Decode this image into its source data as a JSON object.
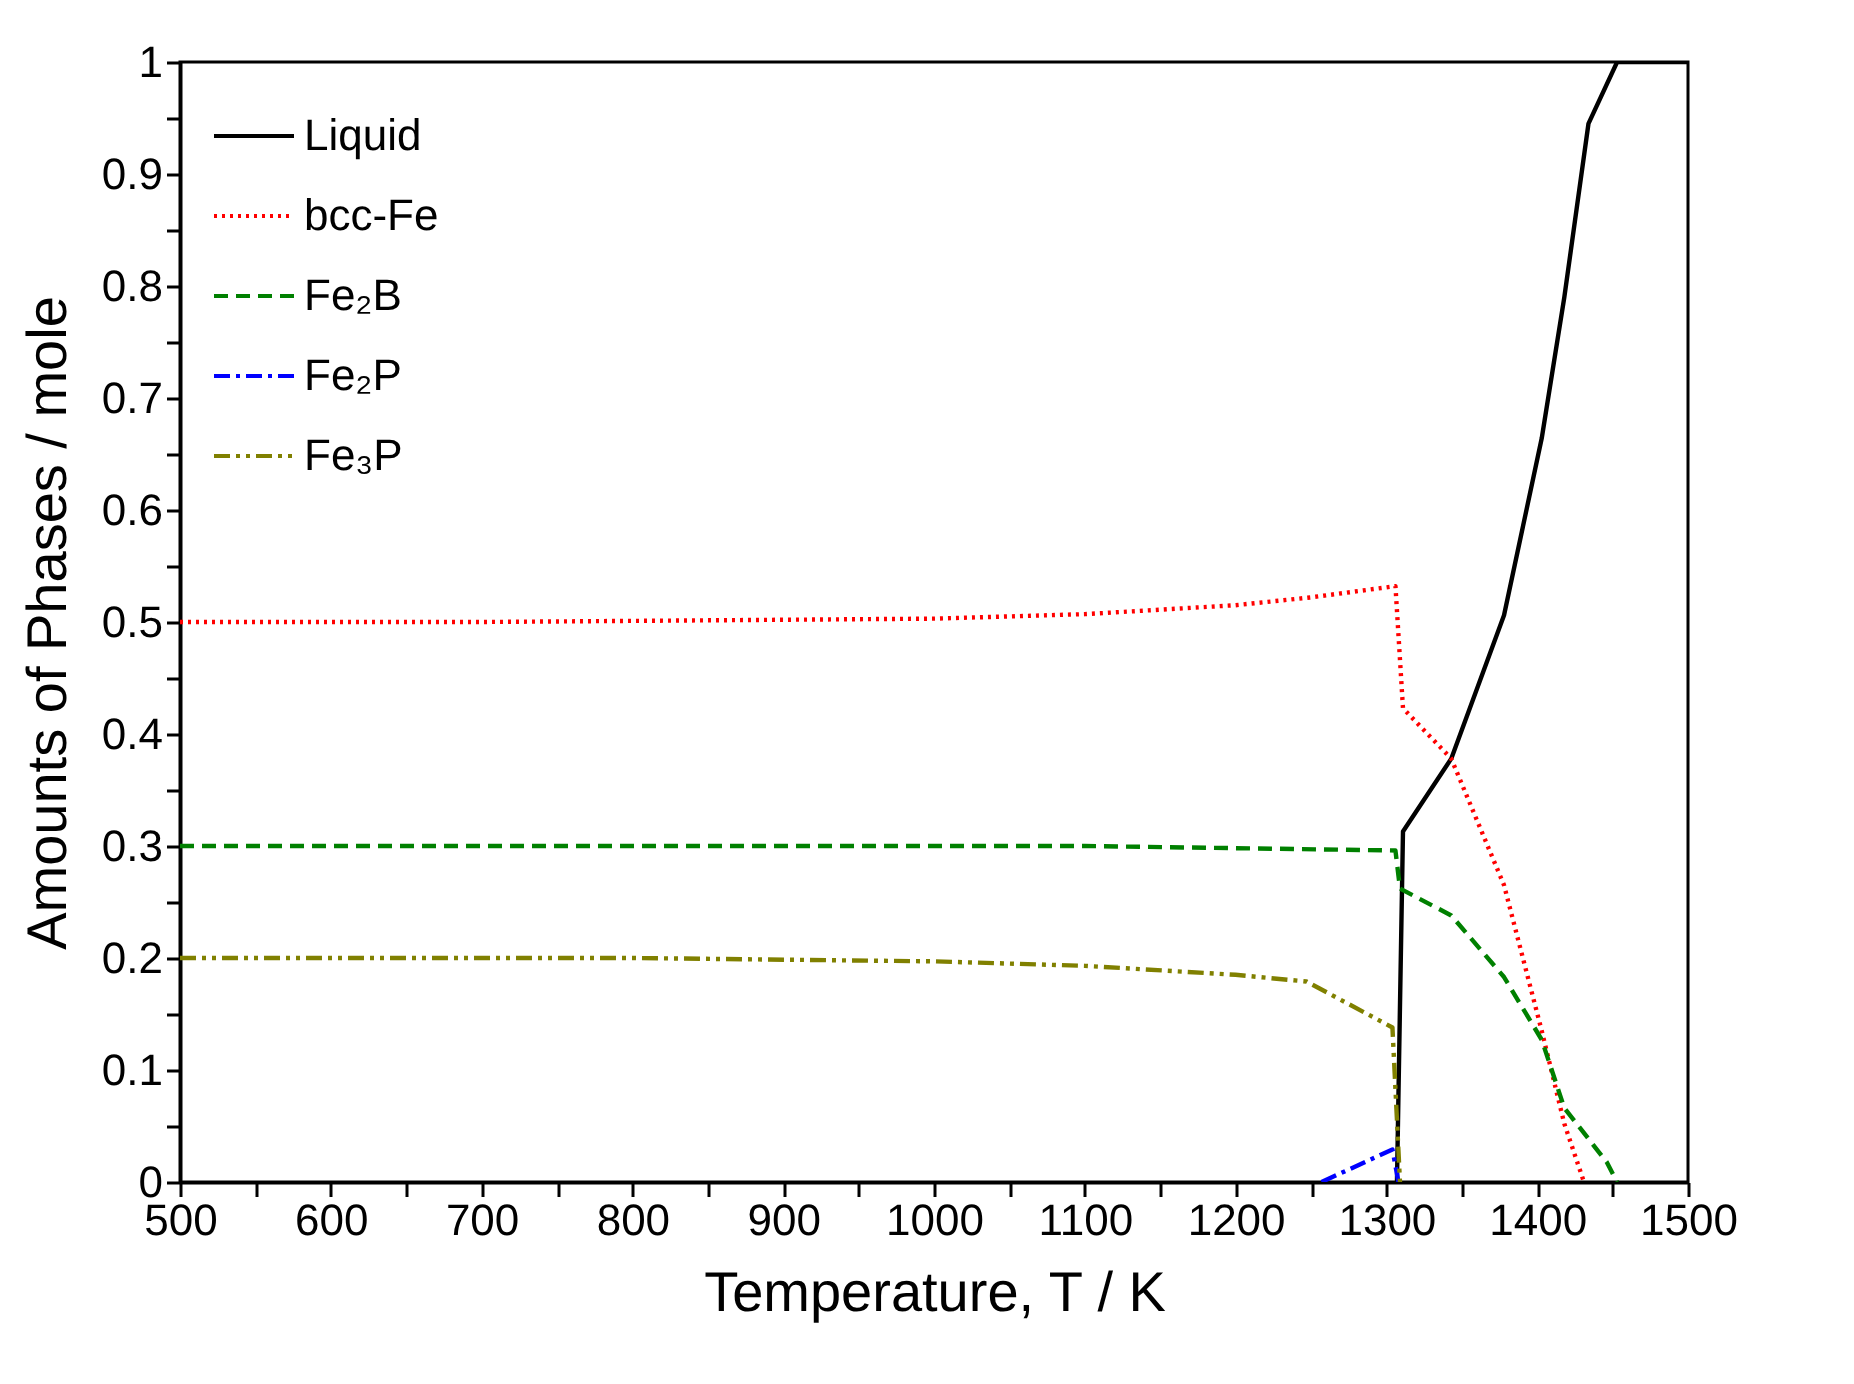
{
  "chart_data": {
    "type": "line",
    "xlabel": "Temperature, T / K",
    "ylabel": "Amounts of Phases / mole",
    "xlim": [
      500,
      1500
    ],
    "ylim": [
      0,
      1
    ],
    "xticks": [
      500,
      {
        "value": 550,
        "label": null
      },
      600,
      {
        "value": 650,
        "label": null
      },
      700,
      {
        "value": 750,
        "label": null
      },
      800,
      {
        "value": 850,
        "label": null
      },
      900,
      {
        "value": 950,
        "label": null
      },
      1000,
      {
        "value": 1050,
        "label": null
      },
      1100,
      {
        "value": 1150,
        "label": null
      },
      1200,
      {
        "value": 1250,
        "label": null
      },
      1300,
      {
        "value": 1350,
        "label": null
      },
      1400,
      {
        "value": 1450,
        "label": null
      },
      1500
    ],
    "yticks": [
      0,
      {
        "value": 0.05,
        "label": null
      },
      0.1,
      {
        "value": 0.15,
        "label": null
      },
      0.2,
      {
        "value": 0.25,
        "label": null
      },
      0.3,
      {
        "value": 0.35,
        "label": null
      },
      0.4,
      {
        "value": 0.45,
        "label": null
      },
      0.5,
      {
        "value": 0.55,
        "label": null
      },
      0.6,
      {
        "value": 0.65,
        "label": null
      },
      0.7,
      {
        "value": 0.75,
        "label": null
      },
      0.8,
      {
        "value": 0.85,
        "label": null
      },
      0.9,
      {
        "value": 0.95,
        "label": null
      },
      1
    ],
    "grid": false,
    "legend": "top left",
    "marker": "none",
    "series": [
      {
        "name": "Liquid",
        "color": "#000000",
        "line_style": "solid",
        "x": [
          1307,
          1311,
          1343,
          1378,
          1403,
          1418,
          1434,
          1453,
          1500
        ],
        "values": [
          0,
          0.313,
          0.378,
          0.506,
          0.664,
          0.79,
          0.945,
          1.0,
          1.0
        ]
      },
      {
        "name": "bcc-Fe",
        "color": "#ff0000",
        "line_style": "dotted",
        "x": [
          500,
          700,
          900,
          1000,
          1100,
          1200,
          1250,
          1306,
          1311,
          1343,
          1378,
          1403,
          1418,
          1431
        ],
        "values": [
          0.5,
          0.5,
          0.502,
          0.503,
          0.507,
          0.515,
          0.522,
          0.532,
          0.423,
          0.378,
          0.265,
          0.135,
          0.052,
          0
        ]
      },
      {
        "name": "Fe₂B",
        "color": "#008000",
        "line_style": "dashed",
        "x": [
          500,
          800,
          1100,
          1306,
          1309,
          1343,
          1378,
          1403,
          1418,
          1446,
          1453
        ],
        "values": [
          0.3,
          0.3,
          0.3,
          0.296,
          0.262,
          0.238,
          0.183,
          0.127,
          0.066,
          0.018,
          0
        ]
      },
      {
        "name": "Fe₂P",
        "color": "#0000ff",
        "line_style": "dashdot",
        "x": [
          1257,
          1304,
          1308
        ],
        "values": [
          0,
          0.029,
          0
        ]
      },
      {
        "name": "Fe₃P",
        "color": "#808000",
        "line_style": "dashdotdot",
        "x": [
          500,
          800,
          1000,
          1100,
          1200,
          1247,
          1304,
          1309
        ],
        "values": [
          0.2,
          0.2,
          0.197,
          0.193,
          0.185,
          0.179,
          0.138,
          0
        ]
      }
    ]
  }
}
